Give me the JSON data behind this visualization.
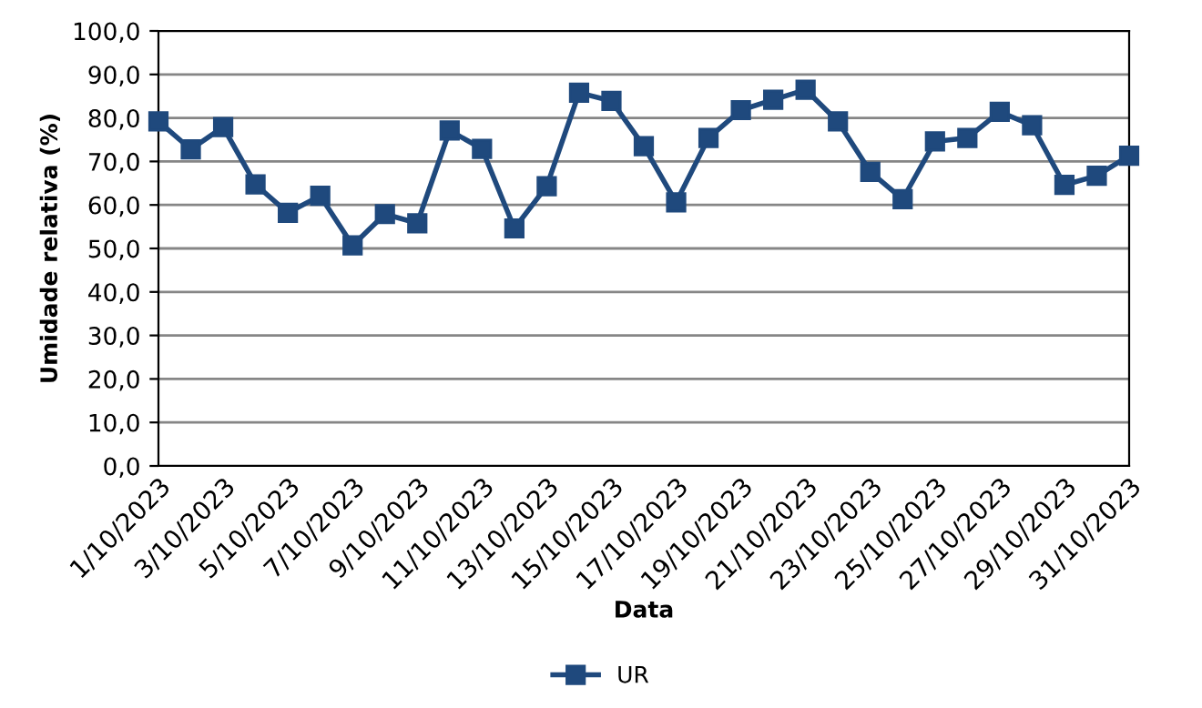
{
  "chart_data": {
    "type": "line",
    "xlabel": "Data",
    "ylabel": "Umidade relativa (%)",
    "categories": [
      "1/10/2023",
      null,
      "3/10/2023",
      null,
      "5/10/2023",
      null,
      "7/10/2023",
      null,
      "9/10/2023",
      null,
      "11/10/2023",
      null,
      "13/10/2023",
      null,
      "15/10/2023",
      null,
      "17/10/2023",
      null,
      "19/10/2023",
      null,
      "21/10/2023",
      null,
      "23/10/2023",
      null,
      "25/10/2023",
      null,
      "27/10/2023",
      null,
      "29/10/2023",
      null,
      "31/10/2023"
    ],
    "series": [
      {
        "name": "UR",
        "color": "#1f497d",
        "values": [
          79.2,
          72.8,
          77.9,
          64.7,
          58.2,
          62.1,
          50.7,
          57.9,
          55.8,
          77.1,
          72.9,
          54.6,
          64.3,
          85.8,
          83.9,
          73.5,
          60.6,
          75.4,
          81.8,
          84.2,
          86.5,
          79.2,
          67.6,
          61.3,
          74.6,
          75.4,
          81.4,
          78.3,
          64.6,
          66.7,
          71.3
        ]
      }
    ],
    "ylim": [
      0,
      100
    ],
    "yticks": [
      {
        "value": 0,
        "label": "0,0"
      },
      {
        "value": 10,
        "label": "10,0"
      },
      {
        "value": 20,
        "label": "20,0"
      },
      {
        "value": 30,
        "label": "30,0"
      },
      {
        "value": 40,
        "label": "40,0"
      },
      {
        "value": 50,
        "label": "50,0"
      },
      {
        "value": 60,
        "label": "60,0"
      },
      {
        "value": 70,
        "label": "70,0"
      },
      {
        "value": 80,
        "label": "80,0"
      },
      {
        "value": 90,
        "label": "90,0"
      },
      {
        "value": 100,
        "label": "100,0"
      }
    ],
    "grid": "y",
    "legend": "bottom",
    "marker": "square",
    "line_style": "solid"
  }
}
